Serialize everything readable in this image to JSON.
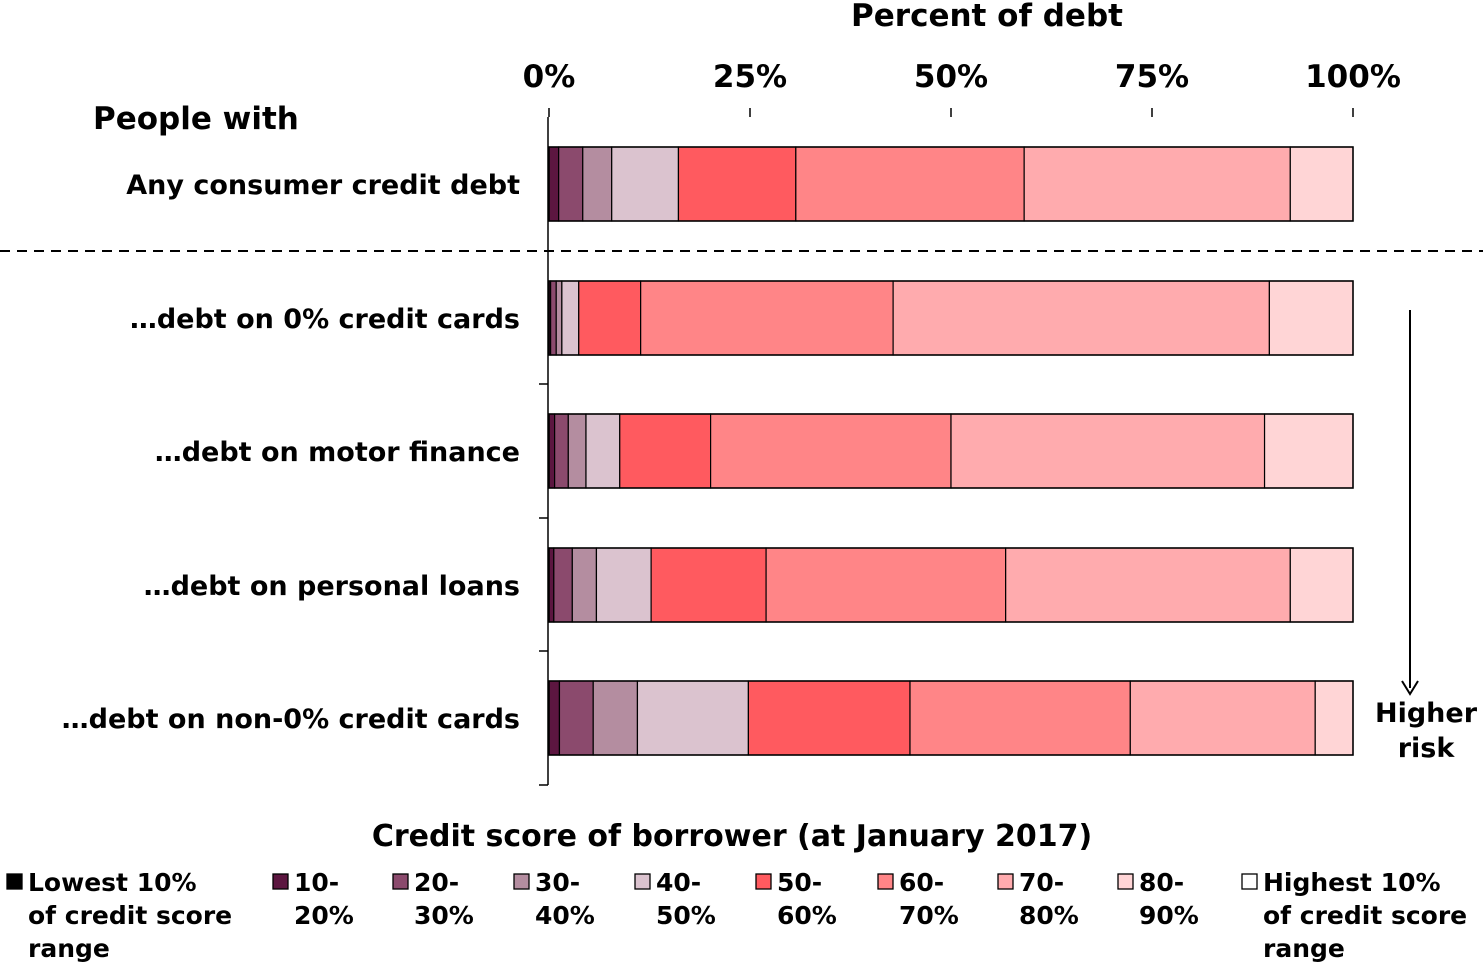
{
  "chart_data": {
    "type": "bar",
    "orientation": "horizontal",
    "stacked": true,
    "x_axis_title": "Percent of debt",
    "x_ticks": [
      "0%",
      "25%",
      "50%",
      "75%",
      "100%"
    ],
    "xlim": [
      0,
      100
    ],
    "section_label": "People with",
    "categories": [
      "Any consumer credit debt",
      "...debt on 0% credit cards",
      "...debt on motor finance",
      "...debt on personal loans",
      "...debt on non-0% credit cards"
    ],
    "category_labels": [
      "Any consumer credit debt",
      "…debt on 0% credit cards",
      "…debt on motor finance",
      "…debt on personal loans",
      "…debt on non-0% credit cards"
    ],
    "legend_title": "Credit score of borrower (at January 2017)",
    "legend_position": "bottom",
    "series": [
      {
        "name": "Lowest 10% of credit score range",
        "color": "#000000",
        "values": [
          0,
          0,
          0,
          0,
          0
        ]
      },
      {
        "name": "10-20%",
        "color": "#5c1640",
        "values": [
          1.2,
          0.2,
          0.7,
          0.6,
          1.3
        ]
      },
      {
        "name": "20-30%",
        "color": "#8b4a6d",
        "values": [
          3.0,
          0.7,
          1.7,
          2.3,
          4.2
        ]
      },
      {
        "name": "30-40%",
        "color": "#b48da0",
        "values": [
          3.6,
          0.7,
          2.2,
          3.0,
          5.5
        ]
      },
      {
        "name": "40-50%",
        "color": "#dbc3cf",
        "values": [
          8.3,
          2.1,
          4.2,
          6.8,
          13.8
        ]
      },
      {
        "name": "50-60%",
        "color": "#ff5a5f",
        "values": [
          14.6,
          7.7,
          11.3,
          14.3,
          20.1
        ]
      },
      {
        "name": "60-70%",
        "color": "#ff8587",
        "values": [
          28.4,
          31.4,
          29.9,
          29.8,
          27.4
        ]
      },
      {
        "name": "70-80%",
        "color": "#ffabae",
        "values": [
          33.1,
          46.8,
          39.0,
          35.4,
          23.0
        ]
      },
      {
        "name": "80-90%",
        "color": "#ffd5d6",
        "values": [
          7.8,
          10.4,
          11.0,
          7.8,
          4.7
        ]
      },
      {
        "name": "Highest 10% of credit score range",
        "color": "#ffffff",
        "values": [
          0,
          0,
          0,
          0,
          0
        ]
      }
    ],
    "legend_items": [
      {
        "lines": [
          "Lowest 10%",
          "of credit score",
          "range"
        ],
        "color": "#000000"
      },
      {
        "lines": [
          "10-",
          "20%"
        ],
        "color": "#5c1640"
      },
      {
        "lines": [
          "20-",
          "30%"
        ],
        "color": "#8b4a6d"
      },
      {
        "lines": [
          "30-",
          "40%"
        ],
        "color": "#b48da0"
      },
      {
        "lines": [
          "40-",
          "50%"
        ],
        "color": "#dbc3cf"
      },
      {
        "lines": [
          "50-",
          "60%"
        ],
        "color": "#ff5a5f"
      },
      {
        "lines": [
          "60-",
          "70%"
        ],
        "color": "#ff8587"
      },
      {
        "lines": [
          "70-",
          "80%"
        ],
        "color": "#ffabae"
      },
      {
        "lines": [
          "80-",
          "90%"
        ],
        "color": "#ffd5d6"
      },
      {
        "lines": [
          "Highest 10%",
          "of credit score",
          "range"
        ],
        "color": "#ffffff"
      }
    ],
    "annotation": {
      "lines": [
        "Higher",
        "risk"
      ],
      "arrow": "down"
    },
    "separator_after_category": 0,
    "grid": false
  }
}
